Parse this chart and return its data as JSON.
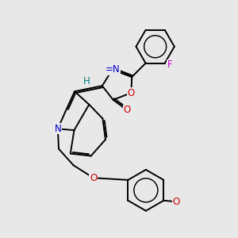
{
  "background_color": "#e8e8e8",
  "bond_color": "#000000",
  "bond_width": 1.4,
  "atom_colors": {
    "N": "#0000cc",
    "O": "#cc0000",
    "F": "#cc00cc",
    "H": "#008080",
    "C": "#000000"
  },
  "font_size": 8.5,
  "fig_width": 3.0,
  "fig_height": 3.0,
  "dpi": 100
}
